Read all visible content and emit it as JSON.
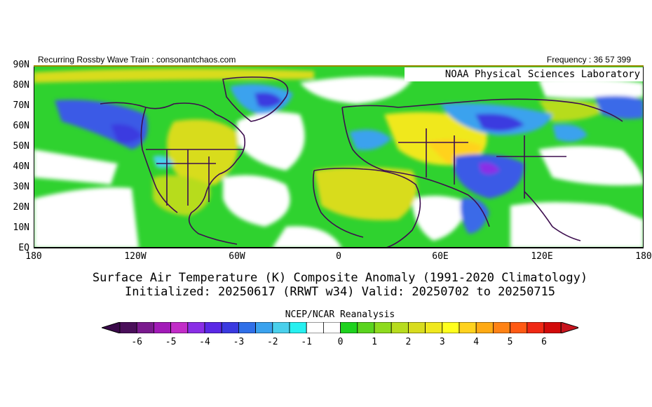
{
  "header": {
    "left_text": "Recurring Rossby Wave Train : consonantchaos.com",
    "right_text": "Frequency : 36 57 399"
  },
  "map": {
    "overlay_label": "NOAA Physical Sciences Laboratory",
    "lat_labels": [
      "90N",
      "80N",
      "70N",
      "60N",
      "50N",
      "40N",
      "30N",
      "20N",
      "10N",
      "EQ"
    ],
    "lon_labels": [
      "180",
      "120W",
      "60W",
      "0",
      "60E",
      "120E",
      "180"
    ],
    "frame_color": "#000000",
    "top_border_color": "#9a8a00",
    "boundary_color": "#3d0f4f"
  },
  "title": {
    "line1": "Surface Air Temperature (K) Composite Anomaly (1991-2020 Climatology)",
    "line2": "Initialized: 20250617 (RRWT w34) Valid: 20250702 to 20250715"
  },
  "colorbar": {
    "title": "NCEP/NCAR Reanalysis",
    "ticks": [
      "-6",
      "-5",
      "-4",
      "-3",
      "-2",
      "-1",
      "0",
      "1",
      "2",
      "3",
      "4",
      "5",
      "6"
    ],
    "colors": [
      "#4a0f5a",
      "#7a1a8e",
      "#a21ab8",
      "#c22cc8",
      "#8a2ee6",
      "#5a28e6",
      "#3a3ae0",
      "#2f6fe8",
      "#3aa2ee",
      "#4ad0ec",
      "#26f0f0",
      "#ffffff",
      "#ffffff",
      "#1ed21e",
      "#5ad41e",
      "#8edb1e",
      "#b7dc1e",
      "#d8dc1e",
      "#f0e81e",
      "#ffff1e",
      "#ffd21e",
      "#ffaa14",
      "#ff8214",
      "#ff5a14",
      "#f02814",
      "#d20a0a"
    ],
    "left_arrow_color": "#3a0a4a",
    "right_arrow_color": "#c8141e"
  }
}
